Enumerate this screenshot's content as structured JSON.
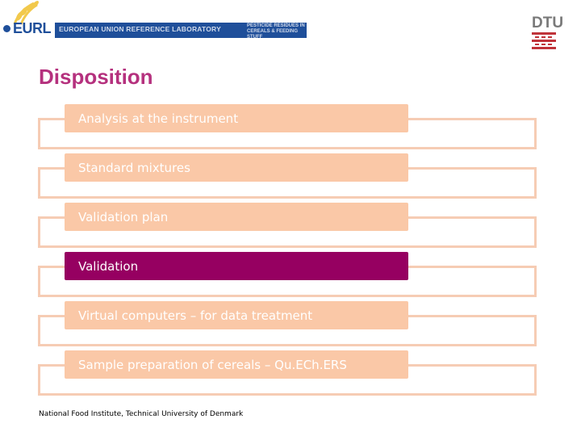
{
  "header": {
    "eurl_logo_text": "EURL",
    "banner_text": "EUROPEAN UNION REFERENCE LABORATORY",
    "banner_subtext": "PESTICIDE RESIDUES IN CEREALS & FEEDING STUFF",
    "dtu_logo_text": "DTU"
  },
  "title": "Disposition",
  "items": [
    {
      "label": "Analysis at the instrument",
      "active": false
    },
    {
      "label": "Standard mixtures",
      "active": false
    },
    {
      "label": "Validation plan",
      "active": false
    },
    {
      "label": "Validation",
      "active": true
    },
    {
      "label": "Virtual computers – for data treatment",
      "active": false
    },
    {
      "label": "Sample preparation of cereals – Qu.ECh.ERS",
      "active": false
    }
  ],
  "colors": {
    "title": "#b5317e",
    "bar": "#fac8a7",
    "bar_active": "#960061",
    "bracket": "#f6ccb4",
    "banner": "#1f4f9a"
  },
  "footer": "National Food Institute, Technical University of Denmark"
}
